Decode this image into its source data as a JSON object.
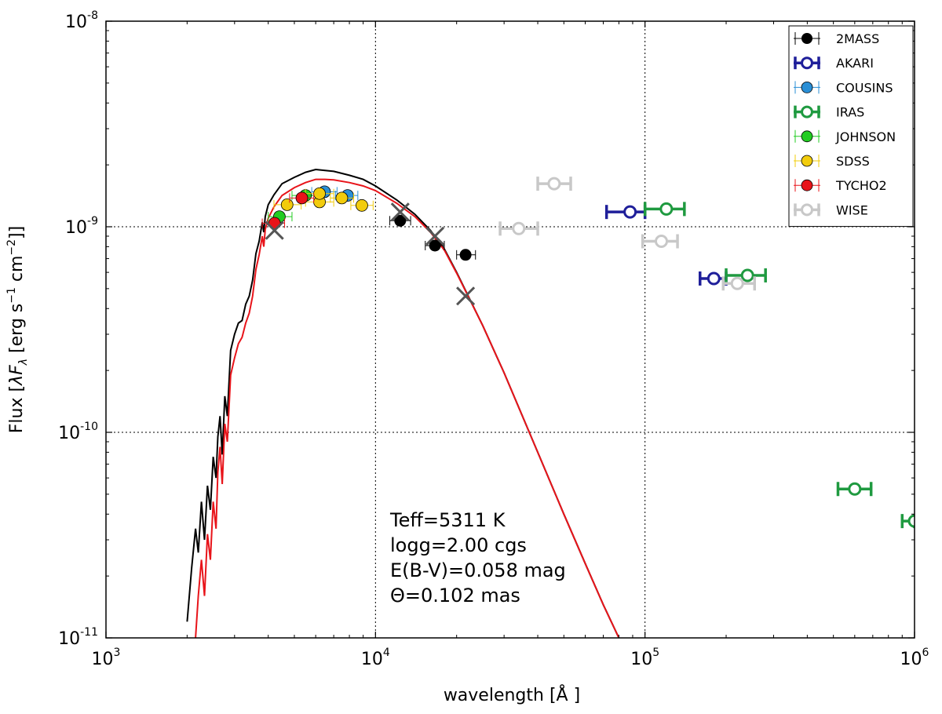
{
  "chart_data": {
    "type": "scatter",
    "xscale": "log",
    "yscale": "log",
    "xlim": [
      1000,
      1000000
    ],
    "ylim": [
      1e-11,
      1e-08
    ],
    "xlabel": "wavelength [Å ]",
    "ylabel": "Flux [λF_λ [erg s⁻¹ cm⁻²]]",
    "ylabel_parts": {
      "pre": "Flux [",
      "lambda": "λ",
      "F": "F",
      "sub": "λ",
      "post": " [erg  s",
      "exp1": "−1",
      "mid": "  cm",
      "exp2": "−2",
      "end": "]]"
    },
    "x_ticks": [
      {
        "value": 1000,
        "base": "10",
        "exp": "3"
      },
      {
        "value": 10000,
        "base": "10",
        "exp": "4"
      },
      {
        "value": 100000,
        "base": "10",
        "exp": "5"
      },
      {
        "value": 1000000,
        "base": "10",
        "exp": "6"
      }
    ],
    "y_ticks": [
      {
        "value": 1e-08,
        "base": "10",
        "exp": "-8"
      },
      {
        "value": 1e-09,
        "base": "10",
        "exp": "-9"
      },
      {
        "value": 1e-10,
        "base": "10",
        "exp": "-10"
      },
      {
        "value": 1e-11,
        "base": "10",
        "exp": "-11"
      }
    ],
    "grid": true,
    "legend_position": "top-right",
    "series": [
      {
        "name": "2MASS",
        "color": "#000000",
        "marker": "filled",
        "points": [
          {
            "x": 12350,
            "y": 1.07e-09,
            "xerr": [
              11300,
              13500
            ]
          },
          {
            "x": 16620,
            "y": 8.1e-10,
            "xerr": [
              15300,
              18000
            ]
          },
          {
            "x": 21590,
            "y": 7.3e-10,
            "xerr": [
              20000,
              23500
            ]
          }
        ]
      },
      {
        "name": "AKARI",
        "color": "#1f1f9a",
        "marker": "open",
        "points": [
          {
            "x": 88000,
            "y": 1.18e-09,
            "xerr": [
              72000,
              100000
            ]
          },
          {
            "x": 180000,
            "y": 5.6e-10,
            "xerr": [
              160000,
              200000
            ]
          }
        ]
      },
      {
        "name": "COUSINS",
        "color": "#2a8fd6",
        "marker": "filled",
        "points": [
          {
            "x": 6470,
            "y": 1.48e-09,
            "xerr": [
              5800,
              7200
            ]
          },
          {
            "x": 7880,
            "y": 1.42e-09,
            "xerr": [
              7100,
              8600
            ]
          }
        ]
      },
      {
        "name": "IRAS",
        "color": "#1f9a40",
        "marker": "open",
        "points": [
          {
            "x": 120000,
            "y": 1.22e-09,
            "xerr": [
              100000,
              140000
            ]
          },
          {
            "x": 240000,
            "y": 5.8e-10,
            "xerr": [
              200000,
              280000
            ]
          },
          {
            "x": 600000,
            "y": 5.3e-11,
            "xerr": [
              520000,
              690000
            ]
          },
          {
            "x": 1000000,
            "y": 3.7e-11,
            "xerr": [
              900000,
              1000000
            ]
          }
        ]
      },
      {
        "name": "JOHNSON",
        "color": "#22cc22",
        "marker": "filled",
        "points": [
          {
            "x": 4400,
            "y": 1.12e-09,
            "xerr": [
              4000,
              4900
            ]
          },
          {
            "x": 5500,
            "y": 1.42e-09,
            "xerr": [
              4900,
              6100
            ]
          }
        ]
      },
      {
        "name": "SDSS",
        "color": "#f2cc0c",
        "marker": "filled",
        "points": [
          {
            "x": 4700,
            "y": 1.28e-09,
            "xerr": [
              4200,
              5300
            ]
          },
          {
            "x": 6200,
            "y": 1.32e-09,
            "xerr": [
              5500,
              7000
            ]
          },
          {
            "x": 6200,
            "y": 1.45e-09,
            "xerr": [
              5500,
              7000
            ]
          },
          {
            "x": 7500,
            "y": 1.38e-09,
            "xerr": [
              6800,
              8300
            ]
          },
          {
            "x": 8900,
            "y": 1.27e-09,
            "xerr": [
              8100,
              9800
            ]
          }
        ]
      },
      {
        "name": "TYCHO2",
        "color": "#e8141a",
        "marker": "filled",
        "points": [
          {
            "x": 4220,
            "y": 1.04e-09,
            "xerr": [
              3800,
              4600
            ]
          },
          {
            "x": 5330,
            "y": 1.38e-09,
            "xerr": [
              4800,
              5900
            ]
          }
        ]
      },
      {
        "name": "WISE",
        "color": "#c8c8c8",
        "marker": "open",
        "points": [
          {
            "x": 34000,
            "y": 9.8e-10,
            "xerr": [
              29000,
              40000
            ]
          },
          {
            "x": 46000,
            "y": 1.62e-09,
            "xerr": [
              40000,
              53000
            ]
          },
          {
            "x": 115000,
            "y": 8.5e-10,
            "xerr": [
              98000,
              132000
            ]
          },
          {
            "x": 220000,
            "y": 5.3e-10,
            "xerr": [
              195000,
              255000
            ]
          }
        ]
      }
    ],
    "model_markers": {
      "name": "synthetic photometry",
      "color": "#555555",
      "points": [
        {
          "x": 4220,
          "y": 9.6e-10
        },
        {
          "x": 12350,
          "y": 1.18e-09
        },
        {
          "x": 16620,
          "y": 9e-10
        },
        {
          "x": 21590,
          "y": 4.6e-10
        }
      ]
    },
    "model_curves": [
      {
        "name": "unreddened model",
        "color": "#000000",
        "points": [
          [
            2000,
            1.2e-11
          ],
          [
            2080,
            2.2e-11
          ],
          [
            2150,
            3.4e-11
          ],
          [
            2200,
            2.6e-11
          ],
          [
            2260,
            4.6e-11
          ],
          [
            2320,
            3e-11
          ],
          [
            2380,
            5.5e-11
          ],
          [
            2440,
            4.2e-11
          ],
          [
            2500,
            7.6e-11
          ],
          [
            2560,
            6e-11
          ],
          [
            2600,
            9.5e-11
          ],
          [
            2650,
            1.2e-10
          ],
          [
            2700,
            7.8e-11
          ],
          [
            2760,
            1.5e-10
          ],
          [
            2820,
            1.2e-10
          ],
          [
            2900,
            2.5e-10
          ],
          [
            3000,
            3e-10
          ],
          [
            3100,
            3.4e-10
          ],
          [
            3200,
            3.5e-10
          ],
          [
            3300,
            4.2e-10
          ],
          [
            3400,
            4.6e-10
          ],
          [
            3500,
            5.5e-10
          ],
          [
            3600,
            7.4e-10
          ],
          [
            3700,
            8.5e-10
          ],
          [
            3800,
            1.05e-09
          ],
          [
            3850,
            9.4e-10
          ],
          [
            3900,
            1.12e-09
          ],
          [
            4000,
            1.28e-09
          ],
          [
            4200,
            1.43e-09
          ],
          [
            4500,
            1.62e-09
          ],
          [
            5000,
            1.74e-09
          ],
          [
            5500,
            1.84e-09
          ],
          [
            6000,
            1.9e-09
          ],
          [
            6500,
            1.88e-09
          ],
          [
            7000,
            1.86e-09
          ],
          [
            8000,
            1.78e-09
          ],
          [
            9000,
            1.7e-09
          ],
          [
            10000,
            1.58e-09
          ],
          [
            12000,
            1.35e-09
          ],
          [
            14000,
            1.15e-09
          ],
          [
            16000,
            9.6e-10
          ],
          [
            18000,
            7.8e-10
          ],
          [
            20000,
            6e-10
          ],
          [
            25000,
            3.3e-10
          ],
          [
            30000,
            1.95e-10
          ],
          [
            40000,
            8e-11
          ],
          [
            50000,
            4e-11
          ],
          [
            60000,
            2.3e-11
          ],
          [
            70000,
            1.45e-11
          ],
          [
            80000,
            1e-11
          ]
        ]
      },
      {
        "name": "reddened model",
        "color": "#e8141a",
        "points": [
          [
            2150,
            1e-11
          ],
          [
            2200,
            1.6e-11
          ],
          [
            2260,
            2.4e-11
          ],
          [
            2320,
            1.6e-11
          ],
          [
            2380,
            3.2e-11
          ],
          [
            2440,
            2.4e-11
          ],
          [
            2500,
            4.6e-11
          ],
          [
            2560,
            3.4e-11
          ],
          [
            2600,
            6.4e-11
          ],
          [
            2650,
            8.5e-11
          ],
          [
            2700,
            5.6e-11
          ],
          [
            2760,
            1.1e-10
          ],
          [
            2820,
            9e-11
          ],
          [
            2900,
            1.9e-10
          ],
          [
            3000,
            2.3e-10
          ],
          [
            3100,
            2.7e-10
          ],
          [
            3200,
            2.9e-10
          ],
          [
            3300,
            3.4e-10
          ],
          [
            3400,
            3.8e-10
          ],
          [
            3500,
            4.6e-10
          ],
          [
            3600,
            6.2e-10
          ],
          [
            3700,
            7.3e-10
          ],
          [
            3800,
            9e-10
          ],
          [
            3850,
            8e-10
          ],
          [
            3900,
            9.7e-10
          ],
          [
            4000,
            1.1e-09
          ],
          [
            4200,
            1.25e-09
          ],
          [
            4500,
            1.42e-09
          ],
          [
            5000,
            1.55e-09
          ],
          [
            5500,
            1.64e-09
          ],
          [
            6000,
            1.7e-09
          ],
          [
            6500,
            1.7e-09
          ],
          [
            7000,
            1.69e-09
          ],
          [
            8000,
            1.64e-09
          ],
          [
            9000,
            1.58e-09
          ],
          [
            10000,
            1.5e-09
          ],
          [
            12000,
            1.3e-09
          ],
          [
            14000,
            1.12e-09
          ],
          [
            16000,
            9.4e-10
          ],
          [
            18000,
            7.7e-10
          ],
          [
            20000,
            5.95e-10
          ],
          [
            25000,
            3.3e-10
          ],
          [
            30000,
            1.95e-10
          ],
          [
            40000,
            8e-11
          ],
          [
            50000,
            4e-11
          ],
          [
            60000,
            2.3e-11
          ],
          [
            70000,
            1.45e-11
          ],
          [
            80000,
            1e-11
          ]
        ]
      }
    ],
    "annotations": [
      "Teff=5311 K",
      "logg=2.00 cgs",
      "E(B-V)=0.058 mag",
      "Θ=0.102 mas"
    ]
  }
}
